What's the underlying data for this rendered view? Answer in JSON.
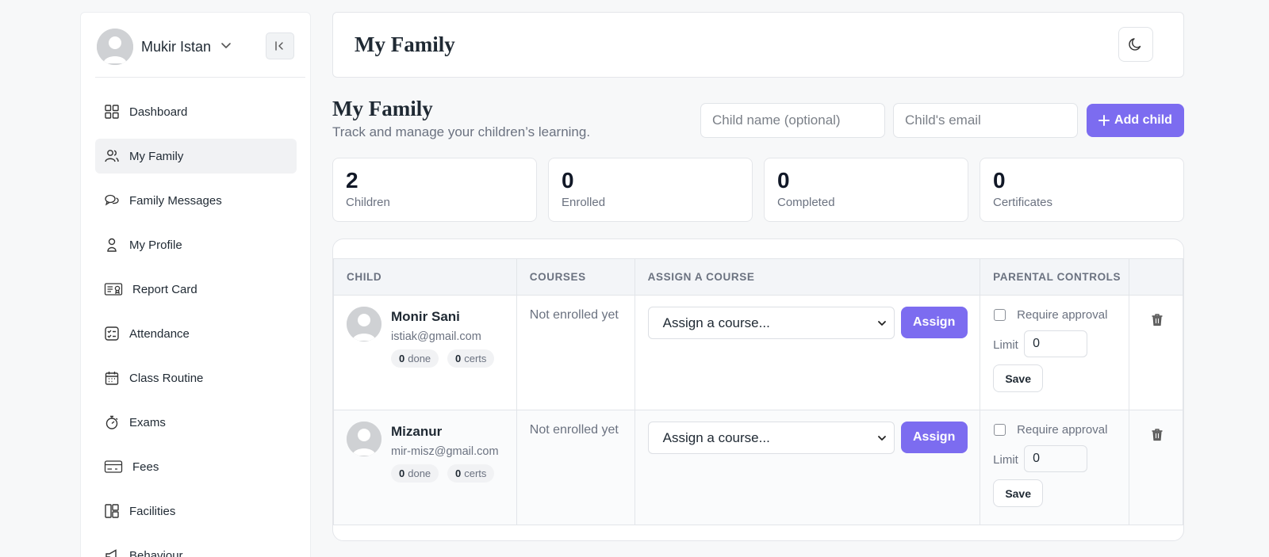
{
  "user": {
    "name": "Mukir Istan"
  },
  "sidebar": {
    "items": [
      {
        "label": "Dashboard",
        "icon": "grid-icon",
        "active": false
      },
      {
        "label": "My Family",
        "icon": "users-icon",
        "active": true
      },
      {
        "label": "Family Messages",
        "icon": "chat-bubbles-icon",
        "active": false
      },
      {
        "label": "My Profile",
        "icon": "person-icon",
        "active": false
      },
      {
        "label": "Report Card",
        "icon": "report-card-icon",
        "active": false
      },
      {
        "label": "Attendance",
        "icon": "checklist-icon",
        "active": false
      },
      {
        "label": "Class Routine",
        "icon": "calendar-icon",
        "active": false
      },
      {
        "label": "Exams",
        "icon": "stopwatch-icon",
        "active": false
      },
      {
        "label": "Fees",
        "icon": "credit-card-icon",
        "active": false
      },
      {
        "label": "Facilities",
        "icon": "layout-icon",
        "active": false
      },
      {
        "label": "Behaviour",
        "icon": "megaphone-icon",
        "active": false
      }
    ]
  },
  "header": {
    "title": "My Family"
  },
  "section": {
    "title": "My Family",
    "subtitle": "Track and manage your children’s learning.",
    "child_name_placeholder": "Child name (optional)",
    "child_email_placeholder": "Child's email",
    "add_button": "Add child"
  },
  "stats": [
    {
      "value": "2",
      "label": "Children"
    },
    {
      "value": "0",
      "label": "Enrolled"
    },
    {
      "value": "0",
      "label": "Completed"
    },
    {
      "value": "0",
      "label": "Certificates"
    }
  ],
  "table": {
    "columns": [
      "CHILD",
      "COURSES",
      "ASSIGN A COURSE",
      "PARENTAL CONTROLS",
      ""
    ],
    "rows": [
      {
        "name": "Monir Sani",
        "email": "istiak@gmail.com",
        "done": "0",
        "done_label": "done",
        "certs": "0",
        "certs_label": "certs",
        "courses": "Not enrolled yet",
        "assign_placeholder": "Assign a course...",
        "assign_button": "Assign",
        "require_approval": "Require approval",
        "limit_label": "Limit",
        "limit_value": "0",
        "save_button": "Save"
      },
      {
        "name": "Mizanur",
        "email": "mir-misz@gmail.com",
        "done": "0",
        "done_label": "done",
        "certs": "0",
        "certs_label": "certs",
        "courses": "Not enrolled yet",
        "assign_placeholder": "Assign a course...",
        "assign_button": "Assign",
        "require_approval": "Require approval",
        "limit_label": "Limit",
        "limit_value": "0",
        "save_button": "Save"
      }
    ]
  },
  "colors": {
    "accent": "#7c6cf0",
    "active_nav": "#f1f2f4",
    "header_bg": "#f3f5f8"
  }
}
